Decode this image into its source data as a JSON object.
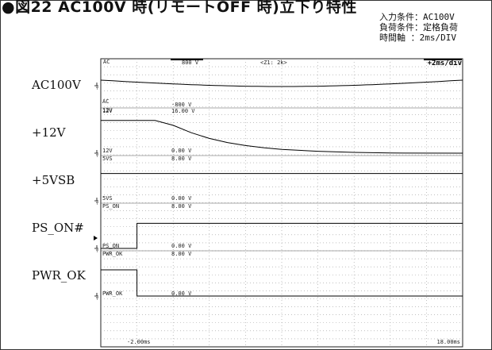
{
  "figure": {
    "title": "●図22 AC100V 時(リモートOFF 時)立下り特性",
    "conditions": [
      "入力条件：AC100V",
      "負荷条件：定格負荷",
      "時間軸 ：2ms/DIV"
    ]
  },
  "scope": {
    "top_left": "AC",
    "top_range": "800 V",
    "zoom": "<Z1: 2k>",
    "timebase": "+2ms/div",
    "time_start": "-2.00ms",
    "time_end": "18.00ms"
  },
  "channels": [
    {
      "name": "AC100V",
      "tag_top": "AC",
      "tag_bottom": "AC",
      "scale_top": "",
      "scale_bottom": "-800 V"
    },
    {
      "name": "+12V",
      "tag_top": "12V",
      "tag_bottom": "12V",
      "scale_top": "16.00 V",
      "scale_bottom": "0.00 V"
    },
    {
      "name": "+5VSB",
      "tag_top": "5VS",
      "tag_bottom": "5VS",
      "scale_top": "8.00 V",
      "scale_bottom": "0.00 V"
    },
    {
      "name": "PS_ON#",
      "tag_top": "PS_ON",
      "tag_bottom": "PS_ON",
      "scale_top": "8.00 V",
      "scale_bottom": "0.00 V"
    },
    {
      "name": "PWR_OK",
      "tag_top": "PWR_OK",
      "tag_bottom": "PWR_OK",
      "scale_top": "8.00 V",
      "scale_bottom": "0.00 V"
    }
  ],
  "colors": {
    "trace": "#000000",
    "grid": "#9a9a9a",
    "background": "#ffffff"
  },
  "chart_data": {
    "type": "line",
    "x_unit": "ms",
    "xlim": [
      -2,
      18
    ],
    "series": [
      {
        "name": "AC100V",
        "kind": "ac_envelope",
        "x": [
          -2,
          18
        ],
        "amplitude_V": 141
      },
      {
        "name": "+12V",
        "x": [
          -2,
          1,
          2,
          3,
          4,
          5,
          6,
          7,
          8,
          10,
          12,
          14,
          18
        ],
        "y": [
          12,
          12,
          10.2,
          7.5,
          5.4,
          3.9,
          2.8,
          2.0,
          1.4,
          0.7,
          0.3,
          0.05,
          0
        ]
      },
      {
        "name": "+5VSB",
        "x": [
          -2,
          18
        ],
        "y": [
          5,
          5
        ]
      },
      {
        "name": "PS_ON#",
        "x": [
          -2,
          0,
          0,
          18
        ],
        "y": [
          0,
          0,
          4.6,
          4.6
        ]
      },
      {
        "name": "PWR_OK",
        "x": [
          -2,
          0,
          0,
          18
        ],
        "y": [
          4.8,
          4.8,
          0,
          0
        ]
      }
    ]
  }
}
